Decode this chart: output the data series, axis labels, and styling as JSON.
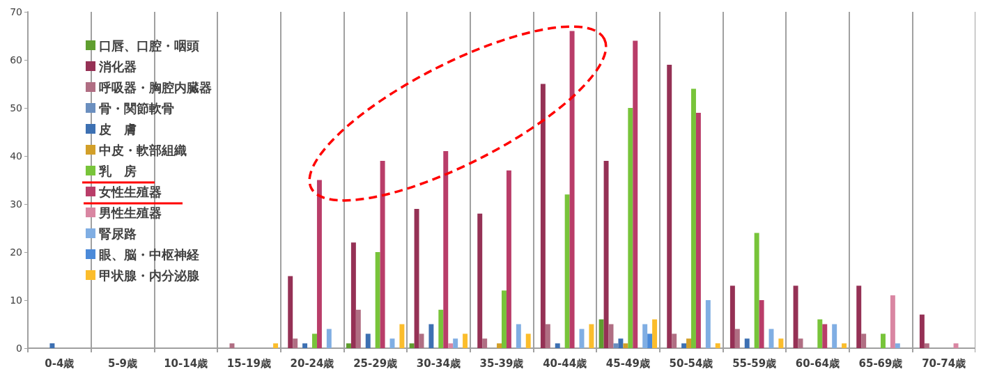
{
  "chart_data": {
    "type": "bar",
    "categories": [
      "0-4歳",
      "5-9歳",
      "10-14歳",
      "15-19歳",
      "20-24歳",
      "25-29歳",
      "30-34歳",
      "35-39歳",
      "40-44歳",
      "45-49歳",
      "50-54歳",
      "55-59歳",
      "60-64歳",
      "65-69歳",
      "70-74歳"
    ],
    "ylim": [
      0,
      70
    ],
    "yticks": [
      0,
      10,
      20,
      30,
      40,
      50,
      60,
      70
    ],
    "grid": "x",
    "legend": "top left",
    "series": [
      {
        "name": "口唇、口腔・咽頭",
        "color": "#5f9e2f",
        "values": [
          0,
          0,
          0,
          0,
          0,
          1,
          1,
          0,
          0,
          6,
          0,
          0,
          0,
          0,
          0
        ]
      },
      {
        "name": "消化器",
        "color": "#953155",
        "values": [
          0,
          0,
          0,
          0,
          15,
          22,
          29,
          28,
          55,
          39,
          59,
          13,
          13,
          13,
          7
        ]
      },
      {
        "name": "呼吸器・胸腔内臓器",
        "color": "#b06e83",
        "values": [
          0,
          0,
          0,
          1,
          2,
          8,
          3,
          2,
          5,
          5,
          3,
          4,
          2,
          3,
          1
        ]
      },
      {
        "name": "骨・関節軟骨",
        "color": "#6b8fbf",
        "values": [
          0,
          0,
          0,
          0,
          0,
          0,
          0,
          0,
          0,
          1,
          0,
          0,
          0,
          0,
          0
        ]
      },
      {
        "name": "皮　膚",
        "color": "#3d70b2",
        "values": [
          1,
          0,
          0,
          0,
          1,
          3,
          5,
          0,
          1,
          2,
          1,
          2,
          0,
          0,
          0
        ]
      },
      {
        "name": "中皮・軟部組織",
        "color": "#d29f29",
        "values": [
          0,
          0,
          0,
          0,
          0,
          0,
          0,
          1,
          0,
          1,
          2,
          0,
          0,
          0,
          0
        ]
      },
      {
        "name": "乳　房",
        "color": "#78c43a",
        "values": [
          0,
          0,
          0,
          0,
          3,
          20,
          8,
          12,
          32,
          50,
          54,
          24,
          6,
          3,
          0
        ]
      },
      {
        "name": "女性生殖器",
        "color": "#b93d69",
        "values": [
          0,
          0,
          0,
          0,
          35,
          39,
          41,
          37,
          66,
          64,
          49,
          10,
          5,
          0,
          0
        ]
      },
      {
        "name": "男性生殖器",
        "color": "#d986a2",
        "values": [
          0,
          0,
          0,
          0,
          0,
          0,
          1,
          0,
          0,
          0,
          0,
          0,
          0,
          11,
          1
        ]
      },
      {
        "name": "腎尿路",
        "color": "#80aee3",
        "values": [
          0,
          0,
          0,
          0,
          4,
          2,
          2,
          5,
          4,
          5,
          10,
          4,
          5,
          1,
          0
        ]
      },
      {
        "name": "眼、脳・中枢神経",
        "color": "#4b8ad9",
        "values": [
          0,
          0,
          0,
          0,
          0,
          0,
          0,
          0,
          0,
          3,
          0,
          0,
          0,
          0,
          0
        ]
      },
      {
        "name": "甲状腺・内分泌腺",
        "color": "#fbbd2c",
        "values": [
          0,
          0,
          0,
          1,
          0,
          5,
          3,
          3,
          5,
          6,
          1,
          2,
          1,
          0,
          0
        ]
      }
    ]
  }
}
